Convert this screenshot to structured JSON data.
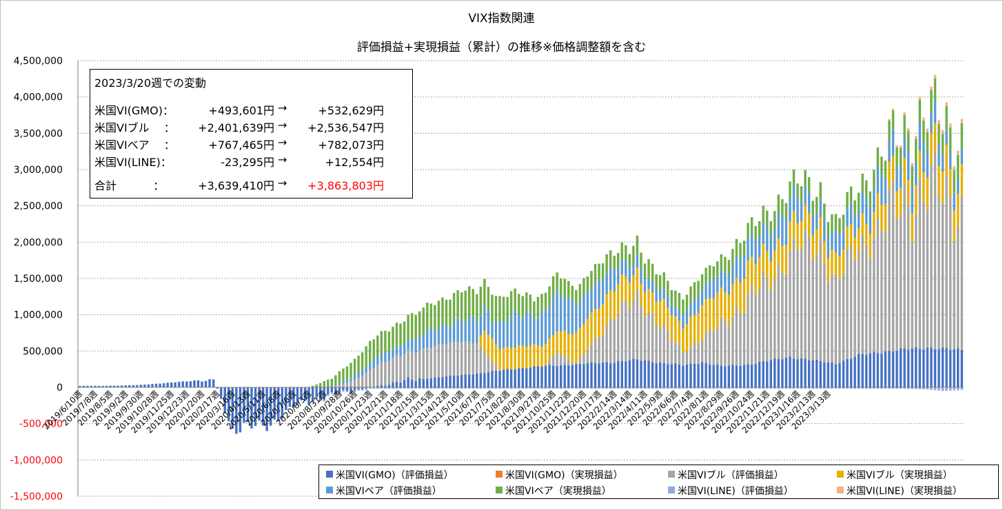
{
  "chart_data": {
    "type": "stacked-bar",
    "title": "VIX指数関連",
    "subtitle": "評価損益+実現損益（累計）の推移※価格調整額を含む",
    "ylim": [
      -1500000,
      4500000
    ],
    "y_ticks": [
      "4,500,000",
      "4,000,000",
      "3,500,000",
      "3,000,000",
      "2,500,000",
      "2,000,000",
      "1,500,000",
      "1,000,000",
      "500,000",
      "0",
      "-500,000",
      "-1,000,000",
      "-1,500,000"
    ],
    "y_tick_values": [
      4500000,
      4000000,
      3500000,
      3000000,
      2500000,
      2000000,
      1500000,
      1000000,
      500000,
      0,
      -500000,
      -1000000,
      -1500000
    ],
    "negative_tick_color": "#ff0000",
    "grid": true,
    "x_tick_labels": [
      "2019/6/10週",
      "2019/7/8週",
      "2019/8/5週",
      "2019/9/2週",
      "2019/9/30週",
      "2019/10/28週",
      "2019/11/25週",
      "2019/12/23週",
      "2020/1/20週",
      "2020/2/17週",
      "2020/3/16週",
      "2020/4/13週",
      "2020/5/11週",
      "2020/6/8週",
      "2020/7/6週",
      "2020/8/3週",
      "2020/8/31週",
      "2020/9/28週",
      "2020/10/26週",
      "2020/11/23週",
      "2020/12/21週",
      "2021/1/18週",
      "2021/2/15週",
      "2021/3/15週",
      "2021/4/12週",
      "2021/5/10週",
      "2021/6/7週",
      "2021/7/5週",
      "2021/8/2週",
      "2021/8/30週",
      "2021/9/27週",
      "2021/10/25週",
      "2021/11/22週",
      "2021/12/20週",
      "2022/1/17週",
      "2022/2/14週",
      "2022/3/14週",
      "2022/4/11週",
      "2022/5/9週",
      "2022/6/6週",
      "2022/7/4週",
      "2022/8/1週",
      "2022/8/29週",
      "2022/9/26週",
      "2022/10/24週",
      "2022/11/21週",
      "2022/12/19週",
      "2023/1/16週",
      "2023/2/13週",
      "2023/3/13週"
    ],
    "weeks_per_tick": 4,
    "series": [
      {
        "name": "米国VI(GMO)（評価損益）",
        "color": "#4472c4",
        "ctrl": [
          [
            0,
            20000
          ],
          [
            6,
            20000
          ],
          [
            15,
            30000
          ],
          [
            25,
            70000
          ],
          [
            35,
            110000
          ],
          [
            37,
            -150000
          ],
          [
            40,
            -600000
          ],
          [
            50,
            -500000
          ],
          [
            58,
            -200000
          ],
          [
            66,
            -100000
          ],
          [
            74,
            -20000
          ],
          [
            84,
            80000
          ],
          [
            94,
            140000
          ],
          [
            104,
            190000
          ],
          [
            114,
            260000
          ],
          [
            124,
            300000
          ],
          [
            134,
            330000
          ],
          [
            140,
            350000
          ],
          [
            146,
            380000
          ],
          [
            152,
            340000
          ],
          [
            158,
            300000
          ],
          [
            163,
            350000
          ],
          [
            168,
            290000
          ],
          [
            174,
            310000
          ],
          [
            180,
            360000
          ],
          [
            186,
            420000
          ],
          [
            192,
            370000
          ],
          [
            198,
            330000
          ],
          [
            204,
            440000
          ],
          [
            210,
            490000
          ],
          [
            216,
            520000
          ],
          [
            222,
            550000
          ],
          [
            228,
            520000
          ],
          [
            232,
            510000
          ]
        ],
        "noise": [
          0.06,
          0.2,
          0.5,
          0.05,
          0.05,
          0.05,
          0.05,
          0.05
        ]
      },
      {
        "name": "米国VI(GMO)（実現損益）",
        "color": "#ed7d31",
        "ctrl": [
          [
            0,
            0
          ],
          [
            232,
            0
          ]
        ],
        "noise": [
          0,
          0,
          0,
          0,
          0,
          0,
          0,
          0
        ]
      },
      {
        "name": "米国VIブル（評価損益）",
        "color": "#a5a5a5",
        "ctrl": [
          [
            0,
            0
          ],
          [
            66,
            0
          ],
          [
            72,
            100000
          ],
          [
            78,
            300000
          ],
          [
            86,
            380000
          ],
          [
            94,
            440000
          ],
          [
            100,
            470000
          ],
          [
            104,
            420000
          ],
          [
            110,
            0
          ],
          [
            118,
            0
          ],
          [
            122,
            0
          ],
          [
            125,
            200000
          ],
          [
            130,
            0
          ],
          [
            136,
            400000
          ],
          [
            142,
            700000
          ],
          [
            146,
            900000
          ],
          [
            150,
            600000
          ],
          [
            158,
            200000
          ],
          [
            164,
            350000
          ],
          [
            170,
            700000
          ],
          [
            176,
            900000
          ],
          [
            182,
            1200000
          ],
          [
            188,
            1500000
          ],
          [
            194,
            1600000
          ],
          [
            198,
            1100000
          ],
          [
            204,
            1500000
          ],
          [
            210,
            1750000
          ],
          [
            216,
            2000000
          ],
          [
            222,
            2200000
          ],
          [
            228,
            2000000
          ],
          [
            232,
            2000000
          ]
        ],
        "noise": [
          0.25,
          0.05,
          0.05,
          0.05,
          0.2,
          0.25,
          0.2,
          0.3
        ]
      },
      {
        "name": "米国VIブル（実現損益）",
        "color": "#e6b000",
        "ctrl": [
          [
            0,
            0
          ],
          [
            102,
            0
          ],
          [
            104,
            0
          ],
          [
            106,
            300000
          ],
          [
            126,
            300000
          ],
          [
            132,
            450000
          ],
          [
            150,
            300000
          ],
          [
            156,
            350000
          ],
          [
            166,
            450000
          ],
          [
            180,
            400000
          ],
          [
            190,
            350000
          ],
          [
            200,
            300000
          ],
          [
            210,
            350000
          ],
          [
            220,
            400000
          ],
          [
            232,
            450000
          ]
        ],
        "noise": [
          0.05,
          0.05,
          0.05,
          0.05,
          0.1,
          0.15,
          0.1,
          0.1
        ]
      },
      {
        "name": "米国VIベア（評価損益）",
        "color": "#5b9bd5",
        "ctrl": [
          [
            0,
            0
          ],
          [
            66,
            0
          ],
          [
            76,
            100000
          ],
          [
            86,
            150000
          ],
          [
            96,
            280000
          ],
          [
            104,
            300000
          ],
          [
            114,
            400000
          ],
          [
            124,
            500000
          ],
          [
            132,
            400000
          ],
          [
            138,
            300000
          ],
          [
            144,
            200000
          ],
          [
            150,
            150000
          ],
          [
            156,
            150000
          ],
          [
            166,
            250000
          ],
          [
            174,
            300000
          ],
          [
            184,
            350000
          ],
          [
            194,
            250000
          ],
          [
            204,
            300000
          ],
          [
            212,
            350000
          ],
          [
            220,
            350000
          ],
          [
            232,
            200000
          ]
        ],
        "noise": [
          0.1,
          0.05,
          0.1,
          0.3,
          0.2,
          0.15,
          0.2,
          0.25
        ]
      },
      {
        "name": "米国VIベア（実現損益）",
        "color": "#70ad47",
        "ctrl": [
          [
            0,
            0
          ],
          [
            60,
            0
          ],
          [
            70,
            200000
          ],
          [
            76,
            280000
          ],
          [
            84,
            320000
          ],
          [
            96,
            380000
          ],
          [
            104,
            400000
          ],
          [
            120,
            250000
          ],
          [
            136,
            230000
          ],
          [
            146,
            230000
          ],
          [
            160,
            220000
          ],
          [
            170,
            210000
          ],
          [
            182,
            230000
          ],
          [
            196,
            220000
          ],
          [
            208,
            250000
          ],
          [
            220,
            300000
          ],
          [
            232,
            320000
          ]
        ],
        "noise": [
          0.1,
          0.05,
          0.1,
          0.1,
          0.2,
          0.1,
          0.1,
          0.1
        ]
      },
      {
        "name": "米国VI(LINE)（評価損益）",
        "color": "#8faadc",
        "ctrl": [
          [
            0,
            0
          ],
          [
            56,
            0
          ],
          [
            62,
            -20000
          ],
          [
            150,
            -20000
          ],
          [
            180,
            -20000
          ],
          [
            200,
            -20000
          ],
          [
            216,
            -20000
          ],
          [
            222,
            -30000
          ],
          [
            226,
            -50000
          ],
          [
            230,
            -40000
          ],
          [
            232,
            -30000
          ]
        ],
        "noise": [
          0,
          0,
          0,
          0,
          0,
          0,
          0,
          0
        ]
      },
      {
        "name": "米国VI(LINE)（実現損益）",
        "color": "#f4b183",
        "ctrl": [
          [
            0,
            0
          ],
          [
            208,
            0
          ],
          [
            212,
            20000
          ],
          [
            218,
            40000
          ],
          [
            224,
            50000
          ],
          [
            232,
            60000
          ]
        ],
        "noise": [
          0,
          0,
          0,
          0,
          0,
          0,
          0,
          0
        ]
      }
    ],
    "n_weeks": 232
  },
  "info_box": {
    "header": "2023/3/20週での変動",
    "rows": [
      {
        "name": "米国VI(GMO)：",
        "before": "+493,601円",
        "arrow": "→",
        "after": "+532,629円"
      },
      {
        "name": "米国VIブル　 ：",
        "before": "+2,401,639円",
        "arrow": "→",
        "after": "+2,536,547円"
      },
      {
        "name": "米国VIベア　 ：",
        "before": "+767,465円",
        "arrow": "→",
        "after": "+782,073円"
      },
      {
        "name": "米国VI(LINE)：",
        "before": "-23,295円",
        "arrow": "→",
        "after": "+12,554円"
      }
    ],
    "total": {
      "name": "合計　　　 ：",
      "before": "+3,639,410円",
      "arrow": "→",
      "after": "+3,863,803円"
    },
    "total_after_color": "#ff0000"
  }
}
